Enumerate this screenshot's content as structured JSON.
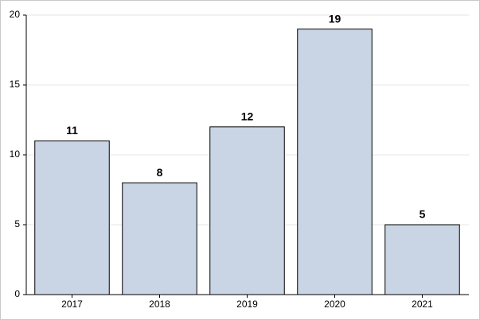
{
  "chart_data": {
    "type": "bar",
    "categories": [
      "2017",
      "2018",
      "2019",
      "2020",
      "2021"
    ],
    "values": [
      11,
      8,
      12,
      19,
      5
    ],
    "color": "#c9d5e5",
    "ylim": [
      0,
      20
    ],
    "yticks": [
      0,
      5,
      10,
      15,
      20
    ],
    "grid": true
  }
}
